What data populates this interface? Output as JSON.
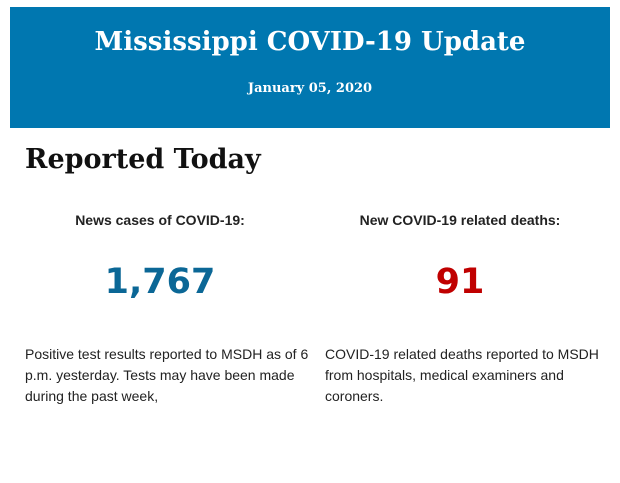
{
  "header": {
    "title": "Mississippi COVID-19 Update",
    "date": "January 05, 2020",
    "bg_color": "#0077b0"
  },
  "section_title": "Reported Today",
  "cases": {
    "label": "News cases of COVID-19:",
    "value": "1,767",
    "color": "#0b6796",
    "description": "Positive test results reported to MSDH as of 6 p.m. yesterday. Tests may have been made during the past week,"
  },
  "deaths": {
    "label": "New COVID-19 related deaths:",
    "value": "91",
    "color": "#c00000",
    "description": "COVID-19 related deaths reported to MSDH from hospitals, medical examiners and coroners."
  }
}
